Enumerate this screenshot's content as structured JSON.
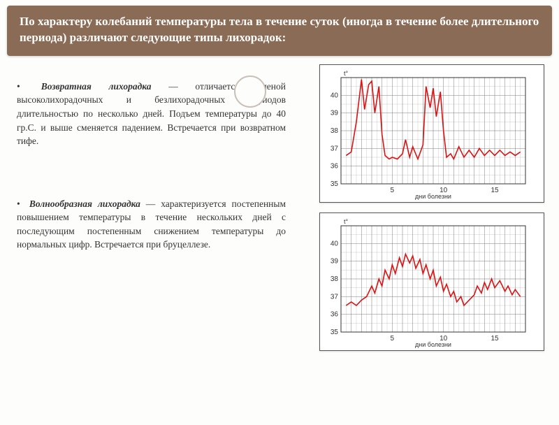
{
  "header": "По характеру колебаний температуры тела в течение суток (иногда в течение более длительного периода) различают следующие типы лихорадок:",
  "paragraphs": [
    {
      "term": "Возвратная лихорадка",
      "body": " — отличается сменой высоколихорадочных и безлихорадочных периодов длительностью по несколько дней. Подъем температуры до 40 гр.С. и выше сменяется падением. Встречается при возвратном тифе."
    },
    {
      "term": "Волнообразная лихорадка",
      "body": " — характеризуется постепенным повышением температуры в течение нескольких дней с последующим постепенным снижением температуры до нормальных цифр. Встречается при бруцеллезе."
    }
  ],
  "charts": [
    {
      "type": "line",
      "xlabel": "дни болезни",
      "ylabel": "t°",
      "xlim": [
        0,
        18
      ],
      "ylim": [
        35,
        41
      ],
      "xticks": [
        5,
        10,
        15
      ],
      "yticks": [
        35,
        36,
        37,
        38,
        39,
        40
      ],
      "line_color": "#d11a1a",
      "grid_color": "#777777",
      "bg_color": "#ffffff",
      "series": [
        [
          0.5,
          36.6
        ],
        [
          1,
          36.8
        ],
        [
          1.5,
          38.5
        ],
        [
          2,
          40.9
        ],
        [
          2.3,
          39.2
        ],
        [
          2.7,
          40.6
        ],
        [
          3,
          40.8
        ],
        [
          3.3,
          39.0
        ],
        [
          3.7,
          40.5
        ],
        [
          4,
          37.8
        ],
        [
          4.3,
          36.6
        ],
        [
          4.7,
          36.4
        ],
        [
          5,
          36.5
        ],
        [
          5.5,
          36.4
        ],
        [
          6,
          36.7
        ],
        [
          6.3,
          37.5
        ],
        [
          6.7,
          36.5
        ],
        [
          7,
          37.1
        ],
        [
          7.5,
          36.4
        ],
        [
          8,
          37.2
        ],
        [
          8.3,
          40.5
        ],
        [
          8.7,
          39.3
        ],
        [
          9,
          40.4
        ],
        [
          9.3,
          38.8
        ],
        [
          9.7,
          40.2
        ],
        [
          10,
          38.0
        ],
        [
          10.3,
          36.5
        ],
        [
          10.7,
          36.7
        ],
        [
          11,
          36.4
        ],
        [
          11.5,
          37.1
        ],
        [
          12,
          36.5
        ],
        [
          12.5,
          36.9
        ],
        [
          13,
          36.5
        ],
        [
          13.5,
          37.0
        ],
        [
          14,
          36.6
        ],
        [
          14.5,
          36.9
        ],
        [
          15,
          36.6
        ],
        [
          15.5,
          36.9
        ],
        [
          16,
          36.6
        ],
        [
          16.5,
          36.8
        ],
        [
          17,
          36.6
        ],
        [
          17.5,
          36.8
        ]
      ]
    },
    {
      "type": "line",
      "xlabel": "дни болезни",
      "ylabel": "t°",
      "xlim": [
        0,
        18
      ],
      "ylim": [
        35,
        41
      ],
      "xticks": [
        5,
        10,
        15
      ],
      "yticks": [
        35,
        36,
        37,
        38,
        39,
        40
      ],
      "line_color": "#d11a1a",
      "grid_color": "#777777",
      "bg_color": "#ffffff",
      "series": [
        [
          0.5,
          36.5
        ],
        [
          1,
          36.7
        ],
        [
          1.5,
          36.5
        ],
        [
          2,
          36.8
        ],
        [
          2.5,
          37.0
        ],
        [
          3,
          37.6
        ],
        [
          3.3,
          37.2
        ],
        [
          3.7,
          38.0
        ],
        [
          4,
          37.6
        ],
        [
          4.3,
          38.5
        ],
        [
          4.7,
          38.0
        ],
        [
          5,
          38.8
        ],
        [
          5.3,
          38.3
        ],
        [
          5.7,
          39.2
        ],
        [
          6,
          38.7
        ],
        [
          6.3,
          39.4
        ],
        [
          6.7,
          38.9
        ],
        [
          7,
          39.3
        ],
        [
          7.3,
          38.6
        ],
        [
          7.7,
          39.1
        ],
        [
          8,
          38.3
        ],
        [
          8.3,
          38.8
        ],
        [
          8.7,
          38.0
        ],
        [
          9,
          38.5
        ],
        [
          9.3,
          37.6
        ],
        [
          9.7,
          38.1
        ],
        [
          10,
          37.3
        ],
        [
          10.3,
          37.7
        ],
        [
          10.7,
          37.0
        ],
        [
          11,
          37.3
        ],
        [
          11.3,
          36.7
        ],
        [
          11.7,
          37.0
        ],
        [
          12,
          36.5
        ],
        [
          12.5,
          36.8
        ],
        [
          13,
          37.1
        ],
        [
          13.3,
          37.6
        ],
        [
          13.7,
          37.2
        ],
        [
          14,
          37.8
        ],
        [
          14.3,
          37.4
        ],
        [
          14.7,
          38.0
        ],
        [
          15,
          37.5
        ],
        [
          15.5,
          37.9
        ],
        [
          16,
          37.3
        ],
        [
          16.3,
          37.6
        ],
        [
          16.7,
          37.1
        ],
        [
          17,
          37.4
        ],
        [
          17.5,
          37.0
        ]
      ]
    }
  ]
}
